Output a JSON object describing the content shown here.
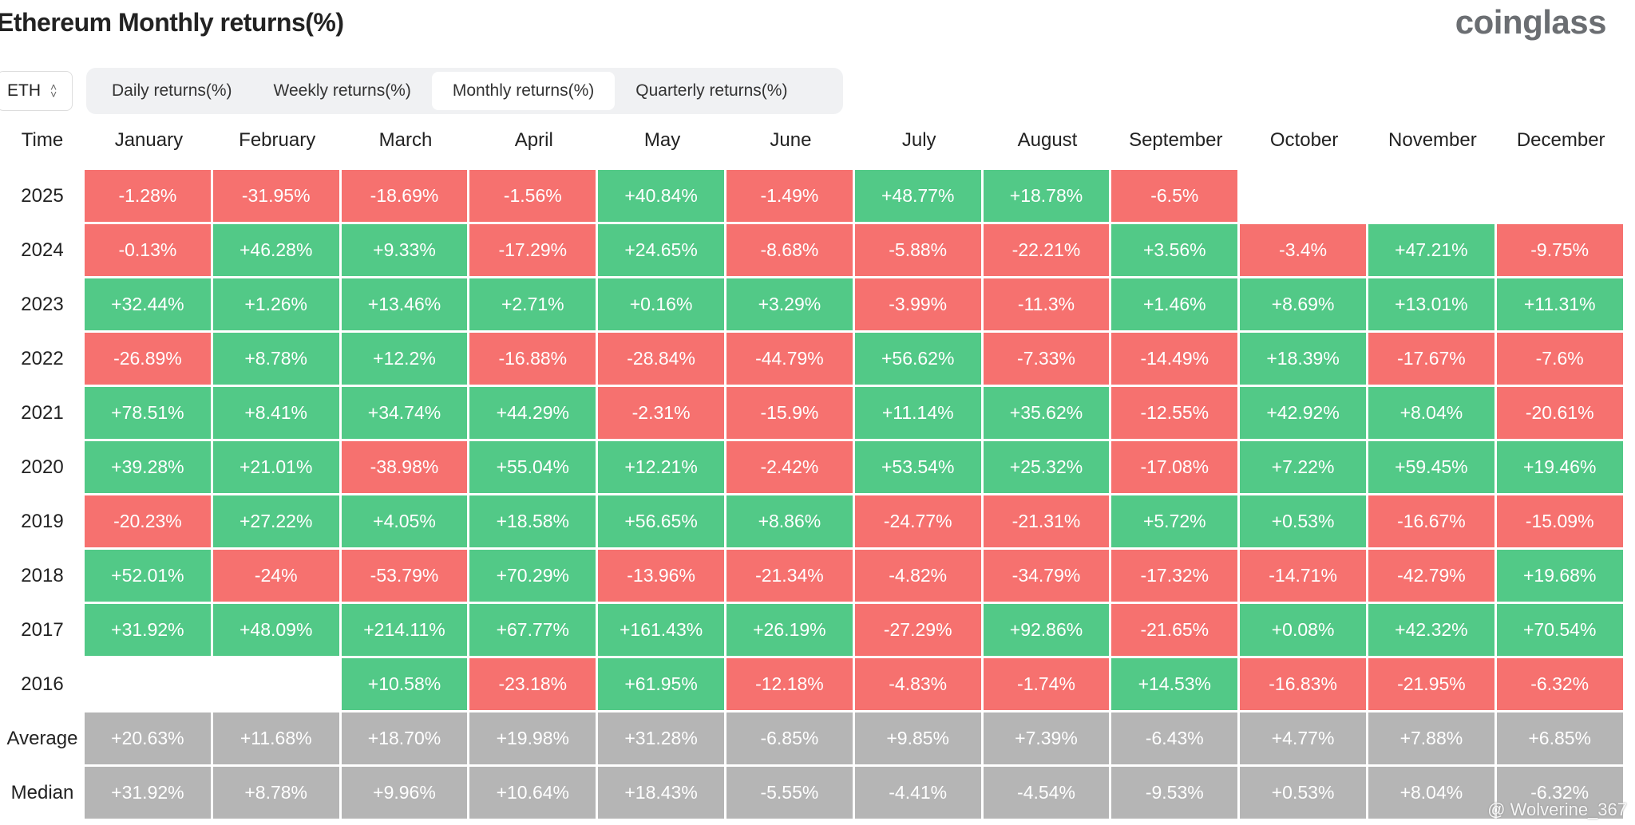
{
  "header": {
    "title": "Ethereum Monthly returns(%)",
    "brand": "coinglass"
  },
  "selector": {
    "label": "ETH"
  },
  "tabs": [
    {
      "label": "Daily returns(%)",
      "selected": false
    },
    {
      "label": "Weekly returns(%)",
      "selected": false
    },
    {
      "label": "Monthly returns(%)",
      "selected": true
    },
    {
      "label": "Quarterly returns(%)",
      "selected": false
    }
  ],
  "table": {
    "corner": "Time",
    "columns": [
      "January",
      "February",
      "March",
      "April",
      "May",
      "June",
      "July",
      "August",
      "September",
      "October",
      "November",
      "December"
    ],
    "rows": [
      {
        "label": "2025",
        "cells": [
          "-1.28%",
          "-31.95%",
          "-18.69%",
          "-1.56%",
          "+40.84%",
          "-1.49%",
          "+48.77%",
          "+18.78%",
          "-6.5%",
          null,
          null,
          null
        ]
      },
      {
        "label": "2024",
        "cells": [
          "-0.13%",
          "+46.28%",
          "+9.33%",
          "-17.29%",
          "+24.65%",
          "-8.68%",
          "-5.88%",
          "-22.21%",
          "+3.56%",
          "-3.4%",
          "+47.21%",
          "-9.75%"
        ]
      },
      {
        "label": "2023",
        "cells": [
          "+32.44%",
          "+1.26%",
          "+13.46%",
          "+2.71%",
          "+0.16%",
          "+3.29%",
          "-3.99%",
          "-11.3%",
          "+1.46%",
          "+8.69%",
          "+13.01%",
          "+11.31%"
        ]
      },
      {
        "label": "2022",
        "cells": [
          "-26.89%",
          "+8.78%",
          "+12.2%",
          "-16.88%",
          "-28.84%",
          "-44.79%",
          "+56.62%",
          "-7.33%",
          "-14.49%",
          "+18.39%",
          "-17.67%",
          "-7.6%"
        ]
      },
      {
        "label": "2021",
        "cells": [
          "+78.51%",
          "+8.41%",
          "+34.74%",
          "+44.29%",
          "-2.31%",
          "-15.9%",
          "+11.14%",
          "+35.62%",
          "-12.55%",
          "+42.92%",
          "+8.04%",
          "-20.61%"
        ]
      },
      {
        "label": "2020",
        "cells": [
          "+39.28%",
          "+21.01%",
          "-38.98%",
          "+55.04%",
          "+12.21%",
          "-2.42%",
          "+53.54%",
          "+25.32%",
          "-17.08%",
          "+7.22%",
          "+59.45%",
          "+19.46%"
        ]
      },
      {
        "label": "2019",
        "cells": [
          "-20.23%",
          "+27.22%",
          "+4.05%",
          "+18.58%",
          "+56.65%",
          "+8.86%",
          "-24.77%",
          "-21.31%",
          "+5.72%",
          "+0.53%",
          "-16.67%",
          "-15.09%"
        ]
      },
      {
        "label": "2018",
        "cells": [
          "+52.01%",
          "-24%",
          "-53.79%",
          "+70.29%",
          "-13.96%",
          "-21.34%",
          "-4.82%",
          "-34.79%",
          "-17.32%",
          "-14.71%",
          "-42.79%",
          "+19.68%"
        ]
      },
      {
        "label": "2017",
        "cells": [
          "+31.92%",
          "+48.09%",
          "+214.11%",
          "+67.77%",
          "+161.43%",
          "+26.19%",
          "-27.29%",
          "+92.86%",
          "-21.65%",
          "+0.08%",
          "+42.32%",
          "+70.54%"
        ]
      },
      {
        "label": "2016",
        "cells": [
          null,
          null,
          "+10.58%",
          "-23.18%",
          "+61.95%",
          "-12.18%",
          "-4.83%",
          "-1.74%",
          "+14.53%",
          "-16.83%",
          "-21.95%",
          "-6.32%"
        ]
      }
    ],
    "summary": [
      {
        "label": "Average",
        "cells": [
          "+20.63%",
          "+11.68%",
          "+18.70%",
          "+19.98%",
          "+31.28%",
          "-6.85%",
          "+9.85%",
          "+7.39%",
          "-6.43%",
          "+4.77%",
          "+7.88%",
          "+6.85%"
        ]
      },
      {
        "label": "Median",
        "cells": [
          "+31.92%",
          "+8.78%",
          "+9.96%",
          "+10.64%",
          "+18.43%",
          "-5.55%",
          "-4.41%",
          "-4.54%",
          "-9.53%",
          "+0.53%",
          "+8.04%",
          "-6.32%"
        ]
      }
    ]
  },
  "watermark": "@ Wolverine_367"
}
